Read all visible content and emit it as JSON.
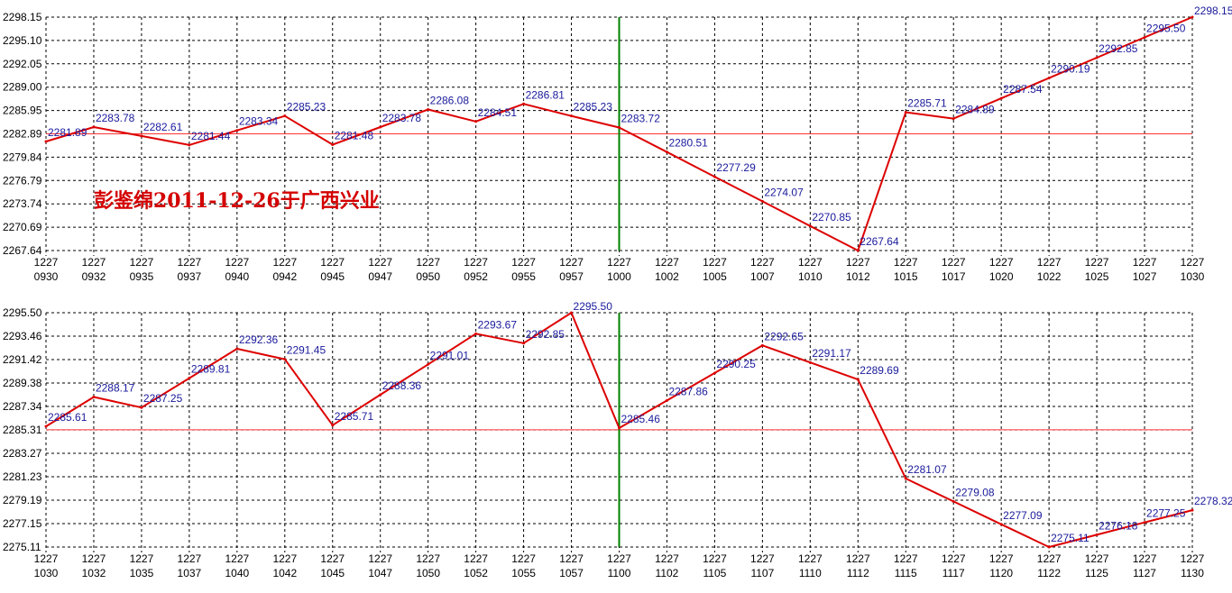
{
  "annotation": "彭鉴绵2011-12-26于广西兴业",
  "colors": {
    "line": "#dd0000",
    "ref": "#ff3333",
    "divider": "#008000",
    "grid": "#000000",
    "label": "#1a1a9c"
  },
  "chart_data": [
    {
      "type": "line",
      "grid": true,
      "ylim": [
        2267.64,
        2298.15
      ],
      "y_ticks": [
        "2298.15",
        "2295.10",
        "2292.05",
        "2289.00",
        "2285.95",
        "2282.89",
        "2279.84",
        "2276.79",
        "2273.74",
        "2270.69",
        "2267.64"
      ],
      "x_ticks": [
        [
          "1227",
          "0930"
        ],
        [
          "1227",
          "0932"
        ],
        [
          "1227",
          "0935"
        ],
        [
          "1227",
          "0937"
        ],
        [
          "1227",
          "0940"
        ],
        [
          "1227",
          "0942"
        ],
        [
          "1227",
          "0945"
        ],
        [
          "1227",
          "0947"
        ],
        [
          "1227",
          "0950"
        ],
        [
          "1227",
          "0952"
        ],
        [
          "1227",
          "0955"
        ],
        [
          "1227",
          "0957"
        ],
        [
          "1227",
          "1000"
        ],
        [
          "1227",
          "1002"
        ],
        [
          "1227",
          "1005"
        ],
        [
          "1227",
          "1007"
        ],
        [
          "1227",
          "1010"
        ],
        [
          "1227",
          "1012"
        ],
        [
          "1227",
          "1015"
        ],
        [
          "1227",
          "1017"
        ],
        [
          "1227",
          "1020"
        ],
        [
          "1227",
          "1022"
        ],
        [
          "1227",
          "1025"
        ],
        [
          "1227",
          "1027"
        ],
        [
          "1227",
          "1030"
        ]
      ],
      "reference_value": 2282.89,
      "divider_index": 12,
      "points": [
        {
          "i": 0,
          "v": 2281.89,
          "label": "2281.89"
        },
        {
          "i": 1,
          "v": 2283.78,
          "label": "2283.78"
        },
        {
          "i": 2,
          "v": 2282.61,
          "label": "2282.61"
        },
        {
          "i": 3,
          "v": 2281.44,
          "label": "2281.44"
        },
        {
          "i": 4,
          "v": 2283.34,
          "label": "2283.34"
        },
        {
          "i": 5,
          "v": 2285.23,
          "label": "2285.23"
        },
        {
          "i": 6,
          "v": 2281.48,
          "label": "2281.48"
        },
        {
          "i": 7,
          "v": 2283.78,
          "label": "2283.78"
        },
        {
          "i": 8,
          "v": 2286.08,
          "label": "2286.08"
        },
        {
          "i": 9,
          "v": 2284.51,
          "label": "2284.51"
        },
        {
          "i": 10,
          "v": 2286.81,
          "label": "2286.81"
        },
        {
          "i": 11,
          "v": 2285.23,
          "label": "2285.23"
        },
        {
          "i": 12,
          "v": 2283.72,
          "label": "2283.72"
        },
        {
          "i": 13,
          "v": 2280.51,
          "label": "2280.51"
        },
        {
          "i": 14,
          "v": 2277.29,
          "label": "2277.29"
        },
        {
          "i": 15,
          "v": 2274.07,
          "label": "2274.07"
        },
        {
          "i": 16,
          "v": 2270.85,
          "label": "2270.85"
        },
        {
          "i": 17,
          "v": 2267.64,
          "label": "2267.64"
        },
        {
          "i": 18,
          "v": 2285.71,
          "label": "2285.71"
        },
        {
          "i": 19,
          "v": 2284.89,
          "label": "2284.89"
        },
        {
          "i": 20,
          "v": 2287.54,
          "label": "2287.54"
        },
        {
          "i": 21,
          "v": 2290.19,
          "label": "2290.19"
        },
        {
          "i": 22,
          "v": 2292.85,
          "label": "2292.85"
        },
        {
          "i": 23,
          "v": 2295.5,
          "label": "2295.50"
        },
        {
          "i": 24,
          "v": 2298.15,
          "label": "2298.15"
        }
      ]
    },
    {
      "type": "line",
      "grid": true,
      "ylim": [
        2275.11,
        2295.5
      ],
      "y_ticks": [
        "2295.50",
        "2293.46",
        "2291.42",
        "2289.38",
        "2287.34",
        "2285.31",
        "2283.27",
        "2281.23",
        "2279.19",
        "2277.15",
        "2275.11"
      ],
      "x_ticks": [
        [
          "1227",
          "1030"
        ],
        [
          "1227",
          "1032"
        ],
        [
          "1227",
          "1035"
        ],
        [
          "1227",
          "1037"
        ],
        [
          "1227",
          "1040"
        ],
        [
          "1227",
          "1042"
        ],
        [
          "1227",
          "1045"
        ],
        [
          "1227",
          "1047"
        ],
        [
          "1227",
          "1050"
        ],
        [
          "1227",
          "1052"
        ],
        [
          "1227",
          "1055"
        ],
        [
          "1227",
          "1057"
        ],
        [
          "1227",
          "1100"
        ],
        [
          "1227",
          "1102"
        ],
        [
          "1227",
          "1105"
        ],
        [
          "1227",
          "1107"
        ],
        [
          "1227",
          "1110"
        ],
        [
          "1227",
          "1112"
        ],
        [
          "1227",
          "1115"
        ],
        [
          "1227",
          "1117"
        ],
        [
          "1227",
          "1120"
        ],
        [
          "1227",
          "1122"
        ],
        [
          "1227",
          "1125"
        ],
        [
          "1227",
          "1127"
        ],
        [
          "1227",
          "1130"
        ]
      ],
      "reference_value": 2285.31,
      "divider_index": 12,
      "points": [
        {
          "i": 0,
          "v": 2285.61,
          "label": "2285.61"
        },
        {
          "i": 1,
          "v": 2288.17,
          "label": "2288.17"
        },
        {
          "i": 2,
          "v": 2287.25,
          "label": "2287.25"
        },
        {
          "i": 3,
          "v": 2289.81,
          "label": "2289.81"
        },
        {
          "i": 4,
          "v": 2292.36,
          "label": "2292.36"
        },
        {
          "i": 5,
          "v": 2291.45,
          "label": "2291.45"
        },
        {
          "i": 6,
          "v": 2285.71,
          "label": "2285.71"
        },
        {
          "i": 7,
          "v": 2288.36,
          "label": "2288.36"
        },
        {
          "i": 8,
          "v": 2291.01,
          "label": "2291.01"
        },
        {
          "i": 9,
          "v": 2293.67,
          "label": "2293.67"
        },
        {
          "i": 10,
          "v": 2292.85,
          "label": "2292.85"
        },
        {
          "i": 11,
          "v": 2295.5,
          "label": "2295.50"
        },
        {
          "i": 12,
          "v": 2285.46,
          "label": "2285.46"
        },
        {
          "i": 13,
          "v": 2287.86,
          "label": "2287.86"
        },
        {
          "i": 14,
          "v": 2290.25,
          "label": "2290.25"
        },
        {
          "i": 15,
          "v": 2292.65,
          "label": "2292.65"
        },
        {
          "i": 16,
          "v": 2291.17,
          "label": "2291.17"
        },
        {
          "i": 17,
          "v": 2289.69,
          "label": "2289.69"
        },
        {
          "i": 18,
          "v": 2281.07,
          "label": "2281.07"
        },
        {
          "i": 19,
          "v": 2279.08,
          "label": "2279.08"
        },
        {
          "i": 20,
          "v": 2277.09,
          "label": "2277.09"
        },
        {
          "i": 21,
          "v": 2275.11,
          "label": "2275.11"
        },
        {
          "i": 22,
          "v": 2276.18,
          "label": "2276.18"
        },
        {
          "i": 23,
          "v": 2277.25,
          "label": "2277.25"
        },
        {
          "i": 24,
          "v": 2278.32,
          "label": "2278.32"
        }
      ]
    }
  ]
}
